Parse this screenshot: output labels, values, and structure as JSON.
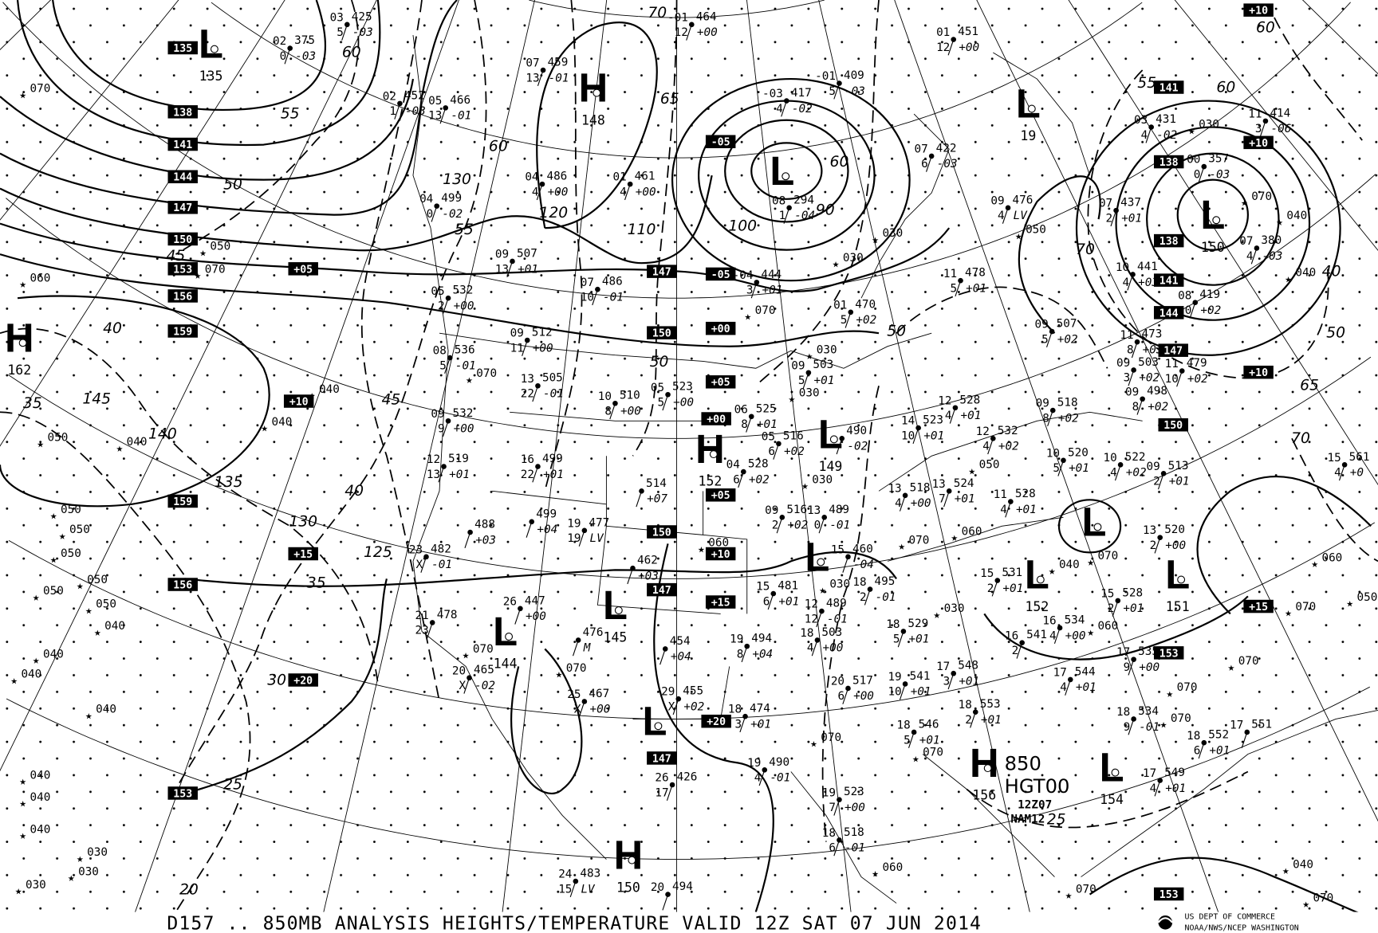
{
  "caption": "D157 .. 850MB   ANALYSIS  HEIGHTS/TEMPERATURE VALID 12Z SAT 07 JUN 2014",
  "agency": {
    "line1": "US DEPT OF COMMERCE",
    "line2": "NOAA/NWS/NCEP WASHINGTON"
  },
  "legend": {
    "level": "850",
    "field": "HGT00",
    "time": "12Z07",
    "model": "NAM12"
  },
  "centers": [
    {
      "type": "L",
      "value": "135"
    },
    {
      "type": "H",
      "value": "148"
    },
    {
      "type": "L",
      "value": ""
    },
    {
      "type": "L",
      "value": "19"
    },
    {
      "type": "L",
      "value": "150"
    },
    {
      "type": "H",
      "value": "162"
    },
    {
      "type": "H",
      "value": "152"
    },
    {
      "type": "L",
      "value": "149"
    },
    {
      "type": "L",
      "value": "145"
    },
    {
      "type": "L",
      "value": "144"
    },
    {
      "type": "L",
      "value": ""
    },
    {
      "type": "L",
      "value": ""
    },
    {
      "type": "L",
      "value": "152"
    },
    {
      "type": "L",
      "value": ""
    },
    {
      "type": "L",
      "value": "151"
    },
    {
      "type": "H",
      "value": "156"
    },
    {
      "type": "L",
      "value": "154"
    },
    {
      "type": "H",
      "value": "150"
    }
  ],
  "boxed_labels": [
    "135",
    "138",
    "141",
    "144",
    "147",
    "150",
    "153",
    "156",
    "159",
    "159",
    "156",
    "153",
    "147",
    "150",
    "150",
    "147",
    "147",
    "-05",
    "-05",
    "+00",
    "+05",
    "+00",
    "+05",
    "+10",
    "+15",
    "+20",
    "+05",
    "+15",
    "+20",
    "+10",
    "141",
    "138",
    "138",
    "141",
    "144",
    "147",
    "150",
    "153",
    "153",
    "+10",
    "+10",
    "+10",
    "+15"
  ],
  "contour_labels": [
    "70",
    "65",
    "60",
    "55",
    "130",
    "120",
    "110",
    "100",
    "50",
    "60",
    "90",
    "50",
    "45",
    "40",
    "35",
    "145",
    "140",
    "135",
    "130",
    "125",
    "35",
    "30",
    "25",
    "20",
    "25",
    "70",
    "60",
    "55",
    "40",
    "50",
    "65",
    "70",
    "60",
    "40",
    "50",
    "55",
    "60",
    "45"
  ],
  "stations": [
    {
      "t": "03",
      "h": "425",
      "d": "5",
      "c": "-03"
    },
    {
      "t": "02",
      "h": "375",
      "d": "0",
      "c": "-03"
    },
    {
      "t": "07",
      "h": "459",
      "d": "13",
      "c": "-01"
    },
    {
      "t": "-01",
      "h": "464",
      "d": "12",
      "c": "+00"
    },
    {
      "t": "-03",
      "h": "417",
      "d": "4",
      "c": "-02"
    },
    {
      "t": "-01",
      "h": "409",
      "d": "5",
      "c": "-03"
    },
    {
      "t": "01",
      "h": "451",
      "d": "12",
      "c": "+00"
    },
    {
      "t": "02",
      "h": "452",
      "d": "1",
      "c": "-03"
    },
    {
      "t": "05",
      "h": "466",
      "d": "13",
      "c": "-01"
    },
    {
      "t": "04",
      "h": "486",
      "d": "4",
      "c": "+00"
    },
    {
      "t": "01",
      "h": "461",
      "d": "4",
      "c": "+00"
    },
    {
      "t": "04",
      "h": "499",
      "d": "0",
      "c": "-02"
    },
    {
      "t": "08",
      "h": "294",
      "d": "1",
      "c": "-04"
    },
    {
      "t": "07",
      "h": "422",
      "d": "6",
      "c": "-03"
    },
    {
      "t": "09",
      "h": "476",
      "d": "4",
      "c": "LV"
    },
    {
      "t": "11",
      "h": "414",
      "d": "3",
      "c": "-06"
    },
    {
      "t": "03",
      "h": "431",
      "d": "4",
      "c": "-02"
    },
    {
      "t": "00",
      "h": "357",
      "d": "0",
      "c": "-03"
    },
    {
      "t": "07",
      "h": "437",
      "d": "2",
      "c": "+01"
    },
    {
      "t": "07",
      "h": "380",
      "d": "4",
      "c": "-03"
    },
    {
      "t": "10",
      "h": "441",
      "d": "4",
      "c": "+03"
    },
    {
      "t": "08",
      "h": "419",
      "d": "0",
      "c": "+02"
    },
    {
      "t": "11",
      "h": "478",
      "d": "5",
      "c": "+01"
    },
    {
      "t": "09",
      "h": "507",
      "d": "13",
      "c": "+01"
    },
    {
      "t": "07",
      "h": "486",
      "d": "10",
      "c": "-01"
    },
    {
      "t": "-04",
      "h": "444",
      "d": "3",
      "c": "+01"
    },
    {
      "t": "01",
      "h": "470",
      "d": "5",
      "c": "+02"
    },
    {
      "t": "05",
      "h": "532",
      "d": "2",
      "c": "+00"
    },
    {
      "t": "09",
      "h": "512",
      "d": "11",
      "c": "+00"
    },
    {
      "t": "08",
      "h": "536",
      "d": "5",
      "c": "-01"
    },
    {
      "t": "09",
      "h": "532",
      "d": "9",
      "c": "+00"
    },
    {
      "t": "13",
      "h": "505",
      "d": "22",
      "c": "-01"
    },
    {
      "t": "10",
      "h": "510",
      "d": "8",
      "c": "+00"
    },
    {
      "t": "05",
      "h": "523",
      "d": "5",
      "c": "+00"
    },
    {
      "t": "06",
      "h": "525",
      "d": "8",
      "c": "+01"
    },
    {
      "t": "09",
      "h": "503",
      "d": "5",
      "c": "+01"
    },
    {
      "t": "12",
      "h": "519",
      "d": "13",
      "c": "+01"
    },
    {
      "t": "16",
      "h": "499",
      "d": "22",
      "c": "+01"
    },
    {
      "t": "04",
      "h": "528",
      "d": "6",
      "c": "+02"
    },
    {
      "t": "05",
      "h": "516",
      "d": "6",
      "c": "+02"
    },
    {
      "t": "",
      "h": "490",
      "d": "",
      "c": "-02"
    },
    {
      "t": "14",
      "h": "523",
      "d": "10",
      "c": "+01"
    },
    {
      "t": "12",
      "h": "528",
      "d": "4",
      "c": "+01"
    },
    {
      "t": "12",
      "h": "532",
      "d": "4",
      "c": "+02"
    },
    {
      "t": "09",
      "h": "518",
      "d": "8",
      "c": "+02"
    },
    {
      "t": "09",
      "h": "498",
      "d": "8",
      "c": "+02"
    },
    {
      "t": "09",
      "h": "503",
      "d": "3",
      "c": "+02"
    },
    {
      "t": "09",
      "h": "507",
      "d": "5",
      "c": "+02"
    },
    {
      "t": "11",
      "h": "473",
      "d": "8",
      "c": "+03"
    },
    {
      "t": "11",
      "h": "479",
      "d": "10",
      "c": "+02"
    },
    {
      "t": "10",
      "h": "520",
      "d": "5",
      "c": "+01"
    },
    {
      "t": "10",
      "h": "522",
      "d": "4",
      "c": "+02"
    },
    {
      "t": "09",
      "h": "513",
      "d": "2",
      "c": "+01"
    },
    {
      "t": "13",
      "h": "518",
      "d": "4",
      "c": "+00"
    },
    {
      "t": "13",
      "h": "524",
      "d": "7",
      "c": "+01"
    },
    {
      "t": "11",
      "h": "528",
      "d": "4",
      "c": "+01"
    },
    {
      "t": "13",
      "h": "520",
      "d": "2",
      "c": "+00"
    },
    {
      "t": "15",
      "h": "528",
      "d": "2",
      "c": "+01"
    },
    {
      "t": "15",
      "h": "531",
      "d": "2",
      "c": "+01"
    },
    {
      "t": "16",
      "h": "534",
      "d": "4",
      "c": "+00"
    },
    {
      "t": "16",
      "h": "541",
      "d": "2",
      "c": ""
    },
    {
      "t": "18",
      "h": "529",
      "d": "5",
      "c": "+01"
    },
    {
      "t": "17",
      "h": "535",
      "d": "9",
      "c": "+00"
    },
    {
      "t": "17",
      "h": "548",
      "d": "3",
      "c": "+01"
    },
    {
      "t": "17",
      "h": "544",
      "d": "4",
      "c": "+01"
    },
    {
      "t": "19",
      "h": "541",
      "d": "10",
      "c": "+01"
    },
    {
      "t": "20",
      "h": "517",
      "d": "6",
      "c": "+00"
    },
    {
      "t": "18",
      "h": "553",
      "d": "2",
      "c": "+01"
    },
    {
      "t": "18",
      "h": "546",
      "d": "5",
      "c": "+01"
    },
    {
      "t": "18",
      "h": "534",
      "d": "9",
      "c": "-01"
    },
    {
      "t": "18",
      "h": "552",
      "d": "6",
      "c": "+01"
    },
    {
      "t": "17",
      "h": "551",
      "d": "",
      "c": ""
    },
    {
      "t": "17",
      "h": "549",
      "d": "4",
      "c": "+01"
    },
    {
      "t": "15",
      "h": "561",
      "d": "4",
      "c": "+0"
    },
    {
      "t": "09",
      "h": "516",
      "d": "2",
      "c": "+02"
    },
    {
      "t": "13",
      "h": "489",
      "d": "0",
      "c": "-01"
    },
    {
      "t": "15",
      "h": "460",
      "d": "",
      "c": "-04"
    },
    {
      "t": "18",
      "h": "495",
      "d": "2",
      "c": "-01"
    },
    {
      "t": "15",
      "h": "481",
      "d": "6",
      "c": "+01"
    },
    {
      "t": "12",
      "h": "489",
      "d": "12",
      "c": "-01"
    },
    {
      "t": "18",
      "h": "503",
      "d": "4",
      "c": "+00"
    },
    {
      "t": "19",
      "h": "494",
      "d": "8",
      "c": "+04"
    },
    {
      "t": "18",
      "h": "474",
      "d": "3",
      "c": "+01"
    },
    {
      "t": "19",
      "h": "490",
      "d": "4",
      "c": "-01"
    },
    {
      "t": "19",
      "h": "523",
      "d": "7",
      "c": "+00"
    },
    {
      "t": "18",
      "h": "518",
      "d": "6",
      "c": "-01"
    },
    {
      "t": "",
      "h": "514",
      "d": "",
      "c": "+07"
    },
    {
      "t": "",
      "h": "499",
      "d": "",
      "c": "+04"
    },
    {
      "t": "",
      "h": "488",
      "d": "",
      "c": "+03"
    },
    {
      "t": "19",
      "h": "477",
      "d": "19",
      "c": "LV"
    },
    {
      "t": "23",
      "h": "482",
      "d": "X",
      "c": "-01"
    },
    {
      "t": "",
      "h": "462",
      "d": "",
      "c": "+03"
    },
    {
      "t": "21",
      "h": "478",
      "d": "23",
      "c": ""
    },
    {
      "t": "26",
      "h": "447",
      "d": "",
      "c": "+00"
    },
    {
      "t": "",
      "h": "476",
      "d": "",
      "c": "M"
    },
    {
      "t": "",
      "h": "454",
      "d": "",
      "c": "+04"
    },
    {
      "t": "20",
      "h": "465",
      "d": "X",
      "c": "-02"
    },
    {
      "t": "25",
      "h": "467",
      "d": "X",
      "c": "+00"
    },
    {
      "t": "29",
      "h": "455",
      "d": "X",
      "c": "+02"
    },
    {
      "t": "26",
      "h": "426",
      "d": "17",
      "c": ""
    },
    {
      "t": "24",
      "h": "483",
      "d": "15",
      "c": "LV"
    },
    {
      "t": "20",
      "h": "494",
      "d": "",
      "c": ""
    }
  ],
  "upper_only": [
    "070",
    "060",
    "050",
    "070",
    "040",
    "040",
    "050",
    "040",
    "050",
    "050",
    "050",
    "050",
    "050",
    "050",
    "040",
    "040",
    "040",
    "040",
    "040",
    "040",
    "040",
    "030",
    "030",
    "030",
    "050",
    "030",
    "030",
    "070",
    "030",
    "030",
    "030",
    "070",
    "030",
    "030",
    "060",
    "070",
    "040",
    "050",
    "060",
    "070",
    "070",
    "070",
    "070",
    "060",
    "050",
    "070",
    "070",
    "030",
    "070",
    "040",
    "040",
    "060",
    "070",
    "070",
    "070",
    "070",
    "060",
    "070",
    "040"
  ]
}
